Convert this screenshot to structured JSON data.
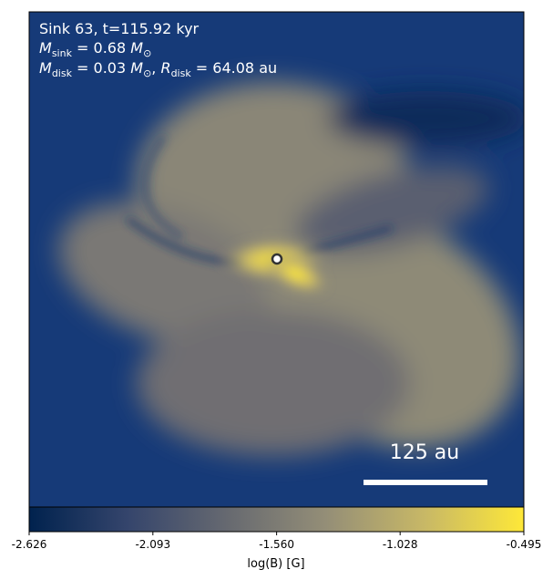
{
  "chart_data": {
    "type": "heatmap",
    "annotations": {
      "line1": "Sink 63, t=115.92 kyr",
      "line2": [
        "M",
        "sink",
        " = 0.68 ",
        "M",
        "⊙"
      ],
      "line3": [
        "M",
        "disk",
        " = 0.03 ",
        "M",
        "⊙",
        ", ",
        "R",
        "disk",
        " = 64.08 au"
      ]
    },
    "scale_bar": "125 au",
    "colorbar": {
      "label": "log(B) [G]",
      "clim": [
        -2.626,
        -0.495
      ],
      "ticks": [
        -2.626,
        -2.093,
        {
          "value": -1.56,
          "label": "-1.560"
        },
        -1.028,
        -0.495
      ],
      "colors": [
        "#00224e",
        "#35456c",
        "#666970",
        "#948e77",
        "#c8b866",
        "#fee838"
      ]
    }
  }
}
